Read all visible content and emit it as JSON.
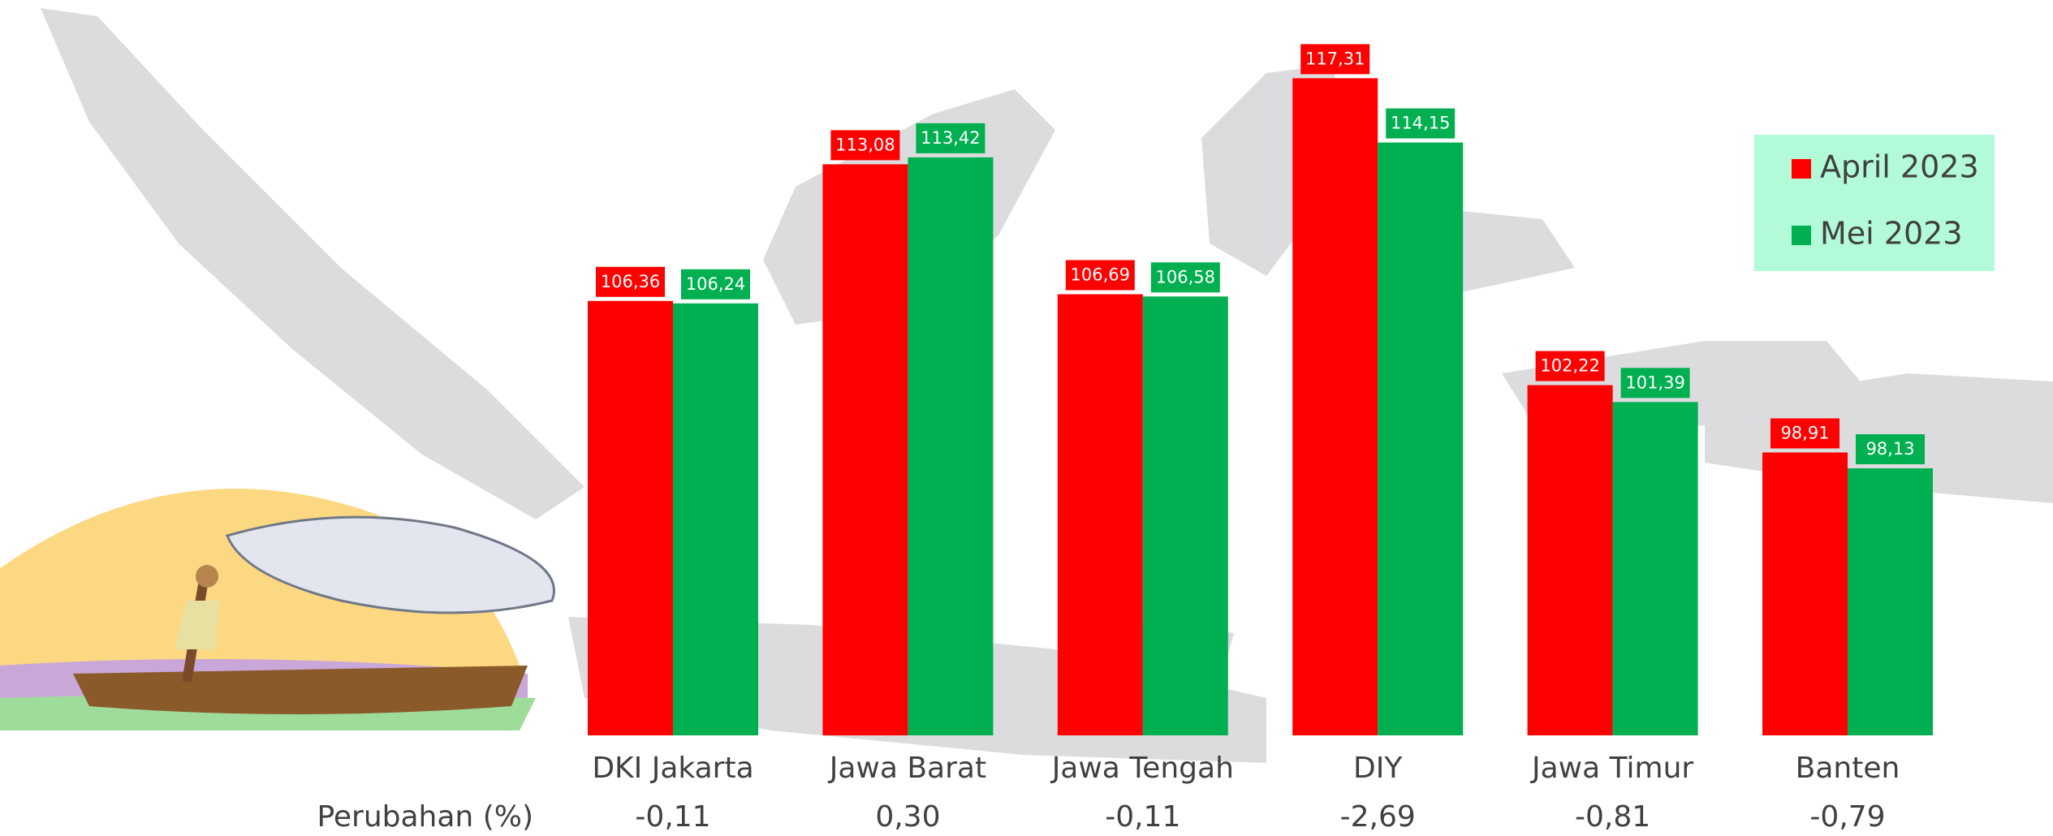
{
  "chart_data": {
    "type": "bar",
    "categories": [
      "DKI Jakarta",
      "Jawa Barat",
      "Jawa Tengah",
      "DIY",
      "Jawa Timur",
      "Banten"
    ],
    "series": [
      {
        "name": "April 2023",
        "color": "#ff0000",
        "values": [
          106.36,
          113.08,
          106.69,
          117.31,
          102.22,
          98.91
        ],
        "value_labels": [
          "106,36",
          "113,08",
          "106,69",
          "117,31",
          "102,22",
          "98,91"
        ]
      },
      {
        "name": "Mei 2023",
        "color": "#00b050",
        "values": [
          106.24,
          113.42,
          106.58,
          114.15,
          101.39,
          98.13
        ],
        "value_labels": [
          "106,24",
          "113,42",
          "106,58",
          "114,15",
          "101,39",
          "98,13"
        ]
      }
    ],
    "ylim": [
      85,
      120
    ],
    "change": {
      "label": "Perubahan (%)",
      "values": [
        -0.11,
        0.3,
        -0.11,
        -2.69,
        -0.81,
        -0.79
      ],
      "value_labels": [
        "-0,11",
        "0,30",
        "-0,11",
        "-2,69",
        "-0,81",
        "-0,79"
      ]
    },
    "legend": "top-right"
  }
}
